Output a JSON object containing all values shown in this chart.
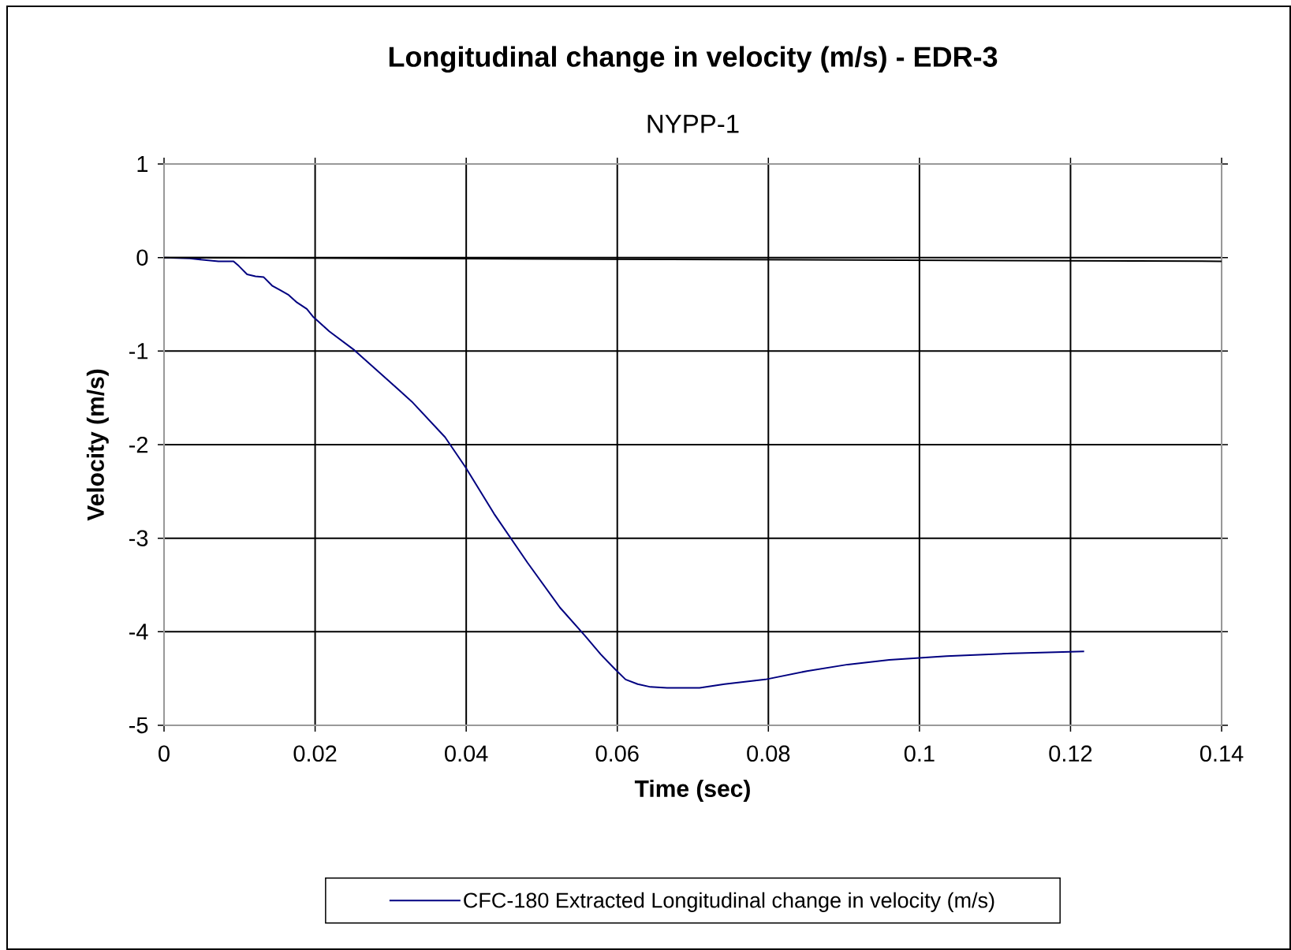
{
  "chart_data": {
    "type": "line",
    "title": "Longitudinal change in velocity (m/s) - EDR-3",
    "subtitle": "NYPP-1",
    "xlabel": "Time (sec)",
    "ylabel": "Velocity (m/s)",
    "xlim": [
      0,
      0.14
    ],
    "xticks": [
      0,
      0.02,
      0.04,
      0.06,
      0.08,
      0.1,
      0.12,
      0.14
    ],
    "ylim": [
      -5,
      1
    ],
    "yticks": [
      -5,
      -4,
      -3,
      -2,
      -1,
      0,
      1
    ],
    "grid": true,
    "legend": "bottom",
    "marker": "none",
    "line_style": "solid",
    "series": [
      {
        "name": "CFC-180 Extracted Longitudinal change in velocity (m/s)",
        "color": "#000080",
        "x": [
          0,
          0.0034,
          0.0072,
          0.0092,
          0.0099,
          0.011,
          0.0121,
          0.0132,
          0.0143,
          0.0154,
          0.0165,
          0.0176,
          0.0189,
          0.0197,
          0.0219,
          0.0252,
          0.0295,
          0.0328,
          0.0372,
          0.0399,
          0.0437,
          0.0481,
          0.0524,
          0.0557,
          0.0578,
          0.0597,
          0.0611,
          0.0627,
          0.0644,
          0.0666,
          0.0709,
          0.0742,
          0.0796,
          0.0851,
          0.0905,
          0.096,
          0.1036,
          0.1123,
          0.1218
        ],
        "values": [
          0,
          -0.01,
          -0.04,
          -0.04,
          -0.09,
          -0.18,
          -0.2,
          -0.21,
          -0.3,
          -0.35,
          -0.4,
          -0.48,
          -0.55,
          -0.63,
          -0.79,
          -0.99,
          -1.3,
          -1.54,
          -1.92,
          -2.24,
          -2.74,
          -3.26,
          -3.74,
          -4.04,
          -4.24,
          -4.4,
          -4.51,
          -4.56,
          -4.59,
          -4.6,
          -4.6,
          -4.56,
          -4.51,
          -4.42,
          -4.35,
          -4.3,
          -4.26,
          -4.23,
          -4.21
        ]
      },
      {
        "color": "#000000",
        "x": [
          0,
          0.14
        ],
        "values": [
          0,
          -0.04
        ]
      }
    ]
  }
}
